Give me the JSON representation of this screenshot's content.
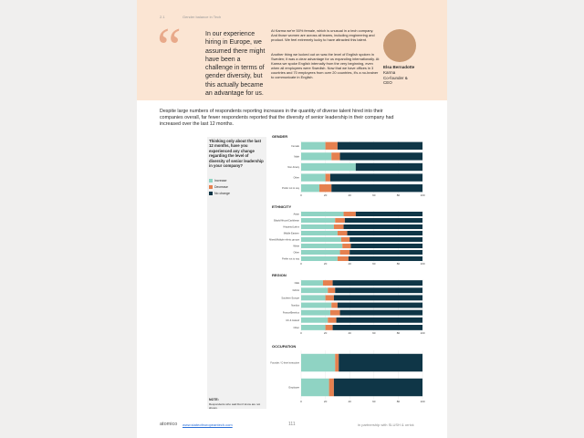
{
  "header": {
    "section": "2.1",
    "section_title": "Gender balance in Tech"
  },
  "quote": {
    "mark": "“",
    "text": "In our experience hiring in Europe, we assumed there might have been a challenge in terms of gender diversity, but this actually became an advantage for us.",
    "paragraphs": [
      "At Karma we're 50% female, which is unusual in a tech company. And those women are across all teams, including engineering and product. We feel extremely lucky to have attracted this talent.",
      "Another thing we lucked out on was the level of English spoken in Sweden; it was a clear advantage for us expanding internationally. At Karma we spoke English internally from the very beginning, even when all employees were Swedish. Now that we have offices in 3 countries and 70 employees from over 20 countries, it's a no-brainer to communicate in English."
    ],
    "person": {
      "name": "Elsa Bernadotte",
      "company": "Karma",
      "role": "Co-founder & CEO"
    }
  },
  "body": "Despite large numbers of respondents reporting increases in the quantity of diverse talent hired into their companies overall, far fewer respondents reported that the diversity of senior leadership in their company had increased over the last 12 months.",
  "panel": {
    "question": "Thinking only about the last 12 months, have you experienced any change regarding the level of diversity of senior leadership in your company?",
    "note": "NOTE:",
    "note_text": "Respondents who said Don't know are not shown."
  },
  "legend": [
    {
      "name": "Increase",
      "color": "#8fd3c3"
    },
    {
      "name": "Decrease",
      "color": "#e5804f"
    },
    {
      "name": "No change",
      "color": "#0f3647"
    }
  ],
  "charts": [
    {
      "title": "GENDER",
      "categories": [
        "Female",
        "Male",
        "Non-binary",
        "Other",
        "Prefer not to say"
      ],
      "increase": [
        20,
        25,
        45,
        20,
        15
      ],
      "decrease": [
        10,
        7,
        0,
        4,
        10
      ],
      "no_change": [
        70,
        68,
        55,
        76,
        75
      ],
      "xlim": [
        0,
        100
      ],
      "xticks": [
        0,
        20,
        40,
        60,
        80,
        100
      ]
    },
    {
      "title": "ETHNICITY",
      "categories": [
        "Asian",
        "Black/African/Caribbean",
        "Hispanic/Latinx",
        "Middle Eastern",
        "Mixed/Multiple ethnic groups",
        "White",
        "Other",
        "Prefer not to say"
      ],
      "increase": [
        35,
        28,
        27,
        30,
        33,
        34,
        32,
        30
      ],
      "decrease": [
        10,
        8,
        8,
        8,
        7,
        7,
        8,
        9
      ],
      "no_change": [
        55,
        64,
        65,
        62,
        60,
        59,
        60,
        61
      ],
      "xlim": [
        0,
        100
      ],
      "xticks": [
        0,
        20,
        40,
        60,
        80,
        100
      ]
    },
    {
      "title": "REGION",
      "categories": [
        "CEE",
        "DACH",
        "Southern Europe",
        "Nordics",
        "France/Benelux",
        "UK & Ireland",
        "Other"
      ],
      "increase": [
        18,
        22,
        20,
        25,
        24,
        22,
        20
      ],
      "decrease": [
        8,
        6,
        7,
        5,
        8,
        7,
        6
      ],
      "no_change": [
        74,
        72,
        73,
        70,
        68,
        71,
        74
      ],
      "xlim": [
        0,
        100
      ],
      "xticks": [
        0,
        20,
        40,
        60,
        80,
        100
      ]
    },
    {
      "title": "OCCUPATION",
      "categories": [
        "Founder / C-level executive",
        "Employee"
      ],
      "increase": [
        28,
        23
      ],
      "decrease": [
        3,
        4
      ],
      "no_change": [
        69,
        73
      ],
      "xlim": [
        0,
        100
      ],
      "xticks": [
        0,
        20,
        40,
        60,
        80,
        100
      ]
    }
  ],
  "footer": {
    "brand": "atomico",
    "url": "www.stateofeuropeantech.com",
    "page": "111",
    "partners": "in partnership with SLUSH & orrick"
  }
}
